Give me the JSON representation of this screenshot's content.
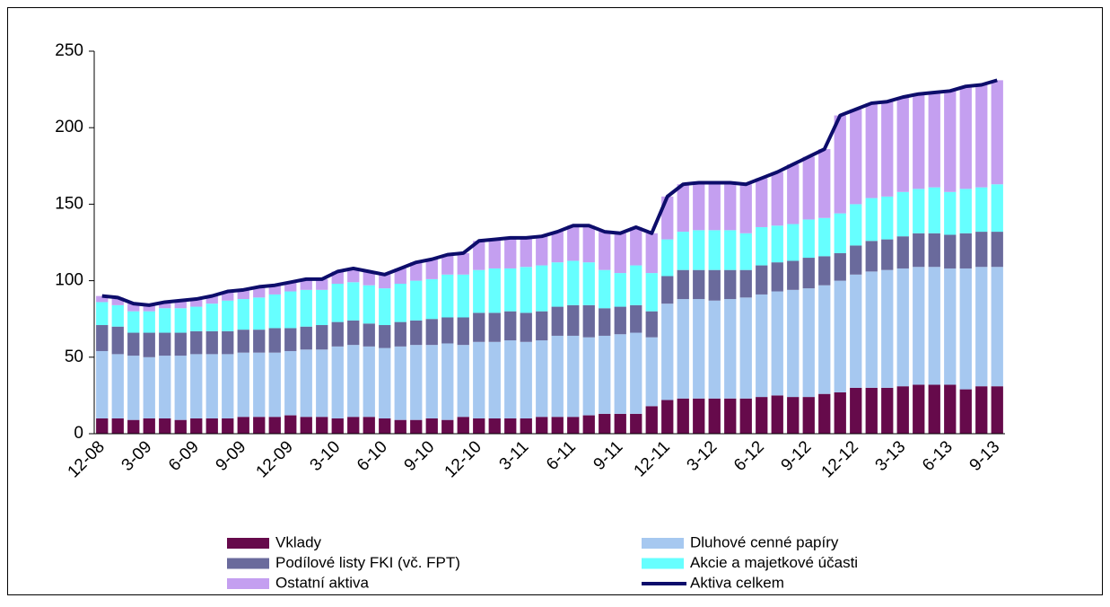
{
  "chart_data": {
    "type": "bar",
    "stacked": true,
    "categories": [
      "12-08",
      null,
      null,
      "3-09",
      null,
      null,
      "6-09",
      null,
      null,
      "9-09",
      null,
      null,
      "12-09",
      null,
      null,
      "3-10",
      null,
      null,
      "6-10",
      null,
      null,
      "9-10",
      null,
      null,
      "12-10",
      null,
      null,
      "3-11",
      null,
      null,
      "6-11",
      null,
      null,
      "9-11",
      null,
      null,
      "12-11",
      null,
      null,
      "3-12",
      null,
      null,
      "6-12",
      null,
      null,
      "9-12",
      null,
      null,
      "12-12",
      null,
      null,
      "3-13",
      null,
      null,
      "6-13",
      null,
      null,
      "9-13"
    ],
    "ylim": [
      0,
      250
    ],
    "yticks": [
      0,
      50,
      100,
      150,
      200,
      250
    ],
    "series": [
      {
        "name": "Vklady",
        "color": "#660a4b",
        "type": "bar",
        "values": [
          10,
          10,
          9,
          10,
          10,
          9,
          10,
          10,
          10,
          11,
          11,
          11,
          12,
          11,
          11,
          10,
          11,
          11,
          10,
          9,
          9,
          10,
          9,
          11,
          10,
          10,
          10,
          10,
          11,
          11,
          11,
          12,
          13,
          13,
          13,
          18,
          22,
          23,
          23,
          23,
          23,
          23,
          24,
          25,
          24,
          24,
          26,
          27,
          30,
          30,
          30,
          31,
          32,
          32,
          32,
          29,
          31,
          31
        ]
      },
      {
        "name": "Dluhové cenné papíry",
        "color": "#a6c8f0",
        "type": "bar",
        "values": [
          44,
          42,
          42,
          40,
          41,
          42,
          42,
          42,
          42,
          42,
          42,
          42,
          42,
          44,
          44,
          47,
          47,
          46,
          46,
          48,
          49,
          48,
          50,
          47,
          50,
          50,
          51,
          50,
          50,
          53,
          53,
          51,
          51,
          52,
          53,
          45,
          63,
          65,
          65,
          64,
          65,
          66,
          67,
          68,
          70,
          71,
          71,
          73,
          74,
          76,
          77,
          77,
          77,
          77,
          76,
          79,
          78,
          78
        ]
      },
      {
        "name": "Podílové listy FKI (vč. FPT)",
        "color": "#6a6a9c",
        "type": "bar",
        "values": [
          17,
          18,
          15,
          16,
          15,
          15,
          15,
          15,
          15,
          15,
          15,
          16,
          15,
          15,
          16,
          16,
          16,
          15,
          15,
          16,
          16,
          17,
          17,
          18,
          19,
          19,
          19,
          19,
          19,
          19,
          20,
          21,
          18,
          18,
          18,
          17,
          18,
          19,
          19,
          20,
          19,
          18,
          19,
          19,
          19,
          20,
          19,
          18,
          19,
          20,
          20,
          21,
          22,
          22,
          22,
          23,
          23,
          23
        ]
      },
      {
        "name": "Akcie a majetkové účasti",
        "color": "#66ffff",
        "type": "bar",
        "values": [
          15,
          14,
          14,
          14,
          16,
          16,
          16,
          18,
          20,
          20,
          21,
          22,
          24,
          24,
          23,
          25,
          25,
          25,
          24,
          25,
          26,
          26,
          28,
          28,
          28,
          29,
          28,
          30,
          30,
          29,
          29,
          28,
          25,
          22,
          26,
          25,
          24,
          25,
          26,
          26,
          26,
          24,
          25,
          24,
          24,
          25,
          25,
          26,
          27,
          28,
          28,
          29,
          29,
          30,
          28,
          29,
          29,
          31
        ]
      },
      {
        "name": "Ostatní aktiva",
        "color": "#c49ff0",
        "type": "bar",
        "values": [
          4,
          5,
          5,
          4,
          4,
          5,
          5,
          5,
          6,
          6,
          7,
          6,
          6,
          7,
          7,
          8,
          9,
          9,
          9,
          10,
          12,
          13,
          13,
          14,
          19,
          19,
          20,
          19,
          19,
          20,
          23,
          24,
          25,
          26,
          25,
          26,
          28,
          31,
          31,
          31,
          31,
          32,
          32,
          35,
          39,
          41,
          45,
          64,
          62,
          62,
          62,
          62,
          62,
          62,
          66,
          67,
          67,
          68
        ]
      },
      {
        "name": "Aktiva celkem",
        "color": "#0d0d6b",
        "type": "line",
        "values": [
          90,
          89,
          85,
          84,
          86,
          87,
          88,
          90,
          93,
          94,
          96,
          97,
          99,
          101,
          101,
          106,
          108,
          106,
          104,
          108,
          112,
          114,
          117,
          118,
          126,
          127,
          128,
          128,
          129,
          132,
          136,
          136,
          132,
          131,
          135,
          131,
          155,
          163,
          164,
          164,
          164,
          163,
          167,
          171,
          176,
          181,
          186,
          208,
          212,
          216,
          217,
          220,
          222,
          223,
          224,
          227,
          228,
          231
        ]
      }
    ]
  }
}
